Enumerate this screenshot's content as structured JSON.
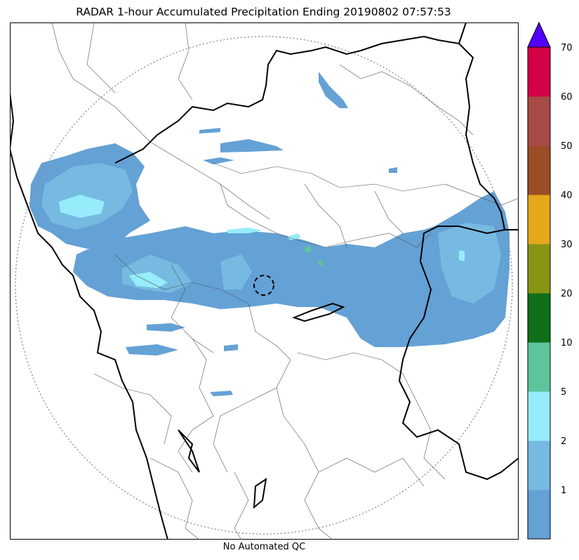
{
  "title": "RADAR 1-hour Accumulated Precipitation Ending 20190802 07:57:53",
  "footer": "No Automated QC",
  "colorbar": {
    "levels": [
      {
        "color": "#64a1d5"
      },
      {
        "color": "#76bae2"
      },
      {
        "color": "#96ecfb"
      },
      {
        "color": "#5dc49b"
      },
      {
        "color": "#0f7019"
      },
      {
        "color": "#879513"
      },
      {
        "color": "#e6a81b"
      },
      {
        "color": "#9b4d26"
      },
      {
        "color": "#a74b46"
      },
      {
        "color": "#d20045"
      }
    ],
    "over_color": "#5200ff",
    "tick_labels": [
      "1",
      "2",
      "5",
      "10",
      "20",
      "30",
      "40",
      "50",
      "60",
      "70"
    ]
  },
  "colors": {
    "boundary_thick": "#000000",
    "boundary_thin": "#555555",
    "range_ring": "#8a8a8a"
  }
}
